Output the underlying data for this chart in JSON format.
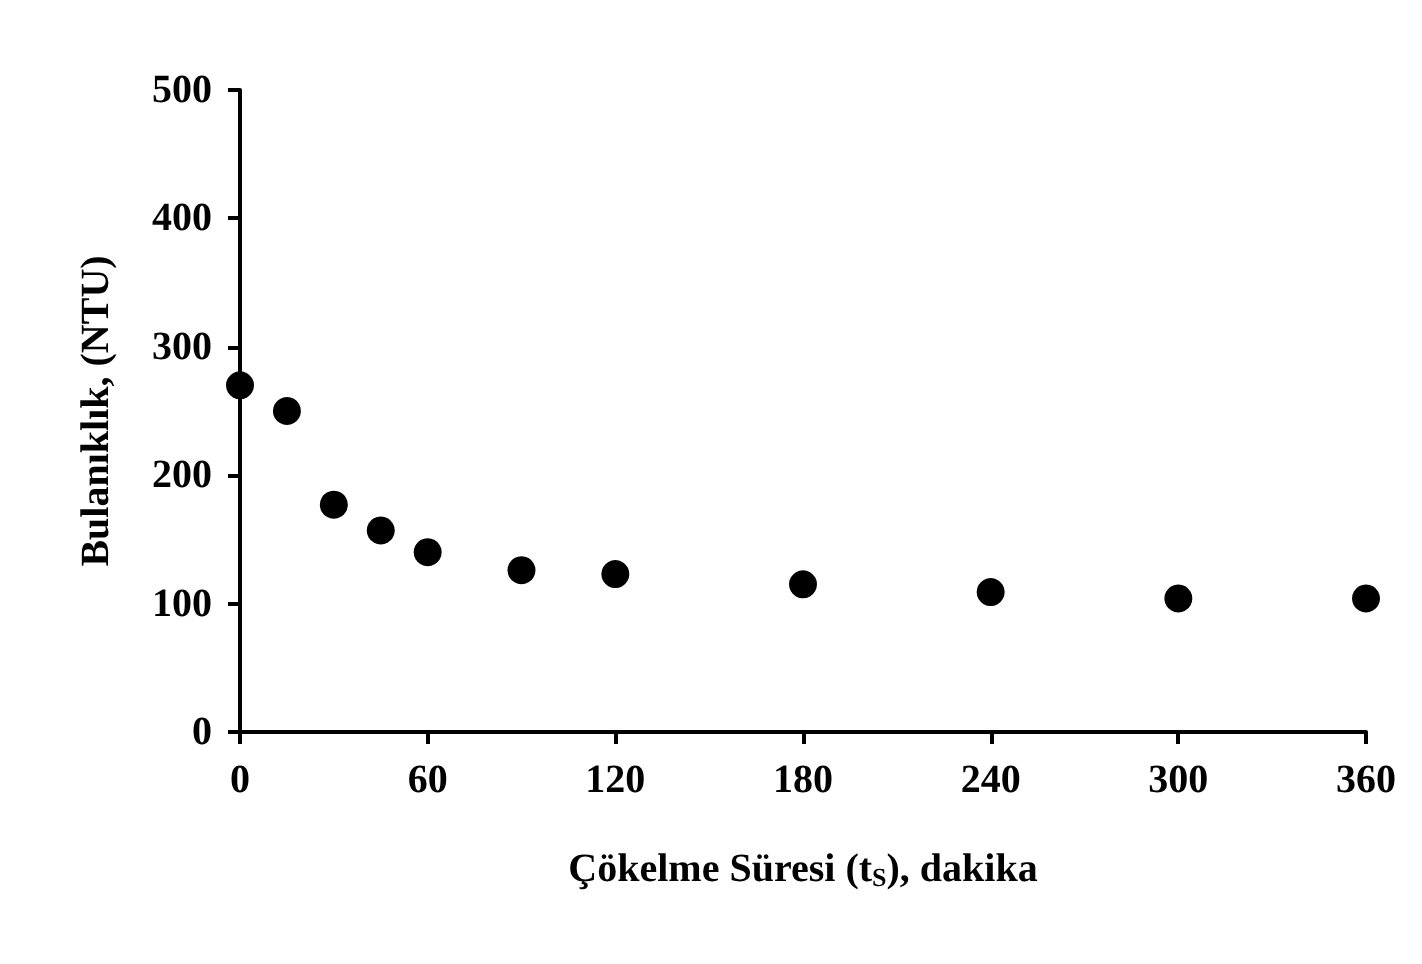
{
  "chart_data": {
    "type": "scatter",
    "xlabel": "Çökelme Süresi (t$_{S}$), dakika",
    "ylabel": "Bulanıklık, (NTU)",
    "x": [
      0,
      15,
      30,
      45,
      60,
      90,
      120,
      180,
      240,
      300,
      360
    ],
    "values": [
      270,
      250,
      177,
      157,
      140,
      126,
      123,
      115,
      109,
      104,
      104
    ],
    "color": "#000000",
    "marker": "circle",
    "xlim": [
      0,
      360
    ],
    "xticks": [
      0,
      60,
      120,
      180,
      240,
      300,
      360
    ],
    "ylim": [
      0,
      500
    ],
    "yticks": [
      0,
      100,
      200,
      300,
      400,
      500
    ],
    "grid": false
  }
}
